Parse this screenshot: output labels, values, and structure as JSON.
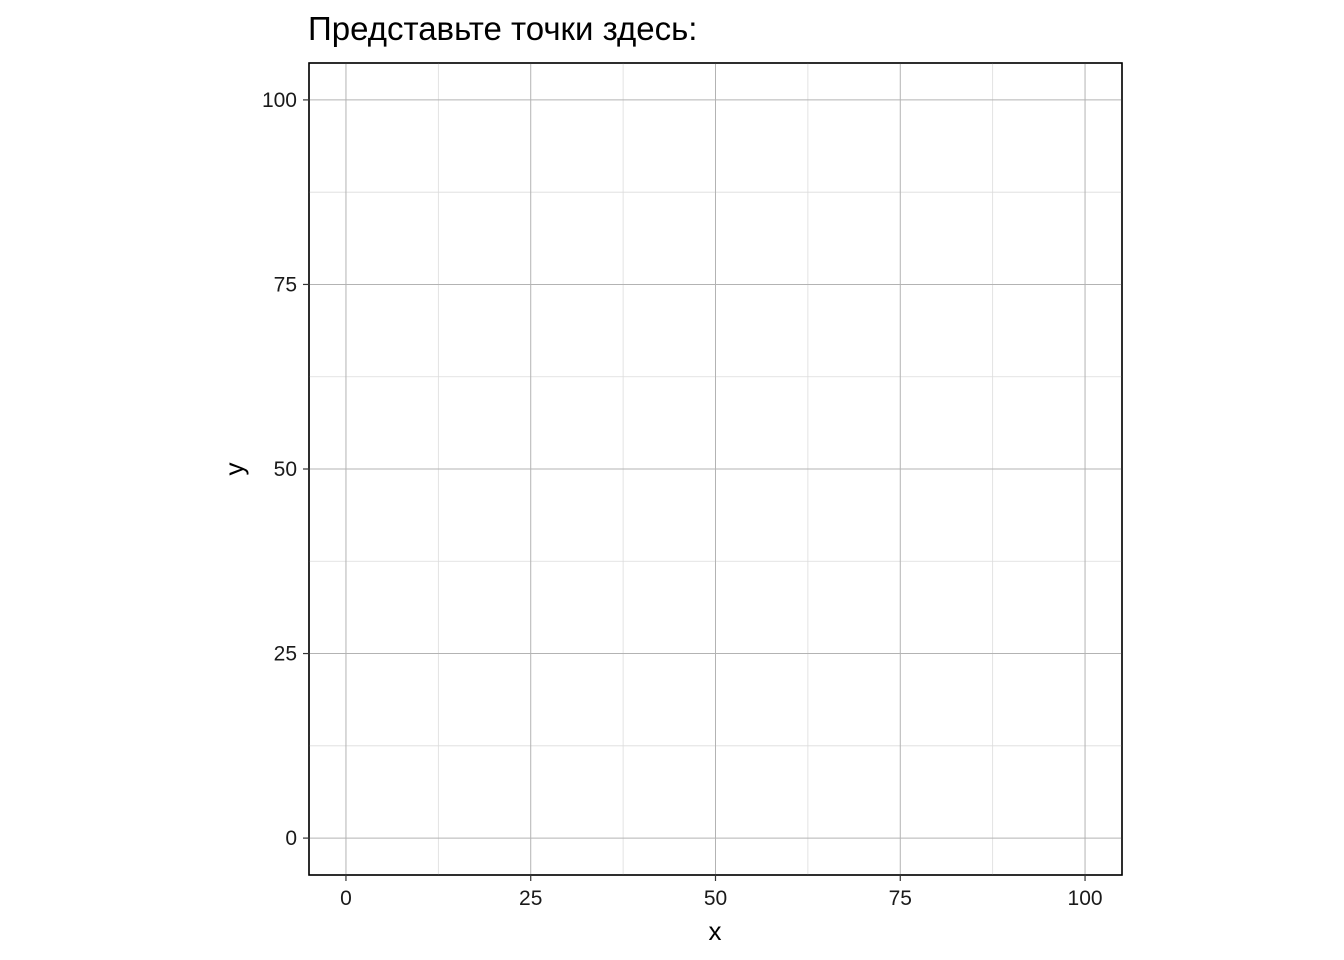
{
  "chart_data": {
    "type": "scatter",
    "title": "Представьте точки здесь:",
    "xlabel": "x",
    "ylabel": "y",
    "xlim": [
      -5,
      105
    ],
    "ylim": [
      -5,
      105
    ],
    "x_major_ticks": [
      0,
      25,
      50,
      75,
      100
    ],
    "y_major_ticks": [
      0,
      25,
      50,
      75,
      100
    ],
    "x_minor_ticks": [
      12.5,
      37.5,
      62.5,
      87.5
    ],
    "y_minor_ticks": [
      12.5,
      37.5,
      62.5,
      87.5
    ],
    "x_tick_labels": [
      "0",
      "25",
      "50",
      "75",
      "100"
    ],
    "y_tick_labels": [
      "0",
      "25",
      "50",
      "75",
      "100"
    ],
    "grid": true,
    "points": []
  }
}
